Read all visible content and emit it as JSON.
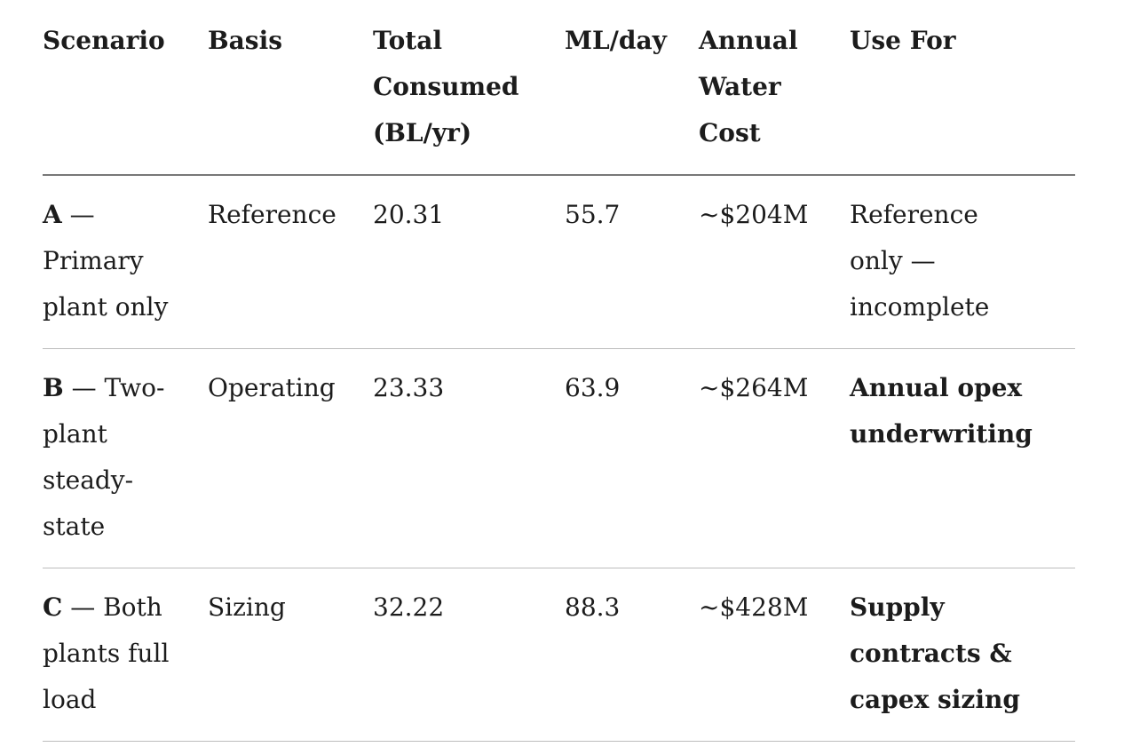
{
  "table": {
    "columns": [
      {
        "label": "Scenario"
      },
      {
        "label": "Basis"
      },
      {
        "label": "Total Consumed (BL/yr)"
      },
      {
        "label": "ML/day"
      },
      {
        "label": "Annual Water Cost"
      },
      {
        "label": "Use For"
      }
    ],
    "rows": [
      {
        "scenario_letter": "A",
        "scenario_rest": "— Primary plant only",
        "basis": "Reference",
        "total_consumed": "20.31",
        "ml_per_day": "55.7",
        "annual_water_cost": "~$204M",
        "use_for": "Reference only — incomplete"
      },
      {
        "scenario_letter": "B",
        "scenario_rest": "— Two-plant steady-state",
        "basis": "Operating",
        "total_consumed": "23.33",
        "ml_per_day": "63.9",
        "annual_water_cost": "~$264M",
        "use_for": "Annual opex underwriting"
      },
      {
        "scenario_letter": "C",
        "scenario_rest": "— Both plants full load",
        "basis": "Sizing",
        "total_consumed": "32.22",
        "ml_per_day": "88.3",
        "annual_water_cost": "~$428M",
        "use_for": "Supply contracts & capex sizing"
      }
    ],
    "colors": {
      "text": "#1c1c1c",
      "header_divider": "#787878",
      "row_divider": "#bdbdbd",
      "background": "#ffffff"
    }
  }
}
